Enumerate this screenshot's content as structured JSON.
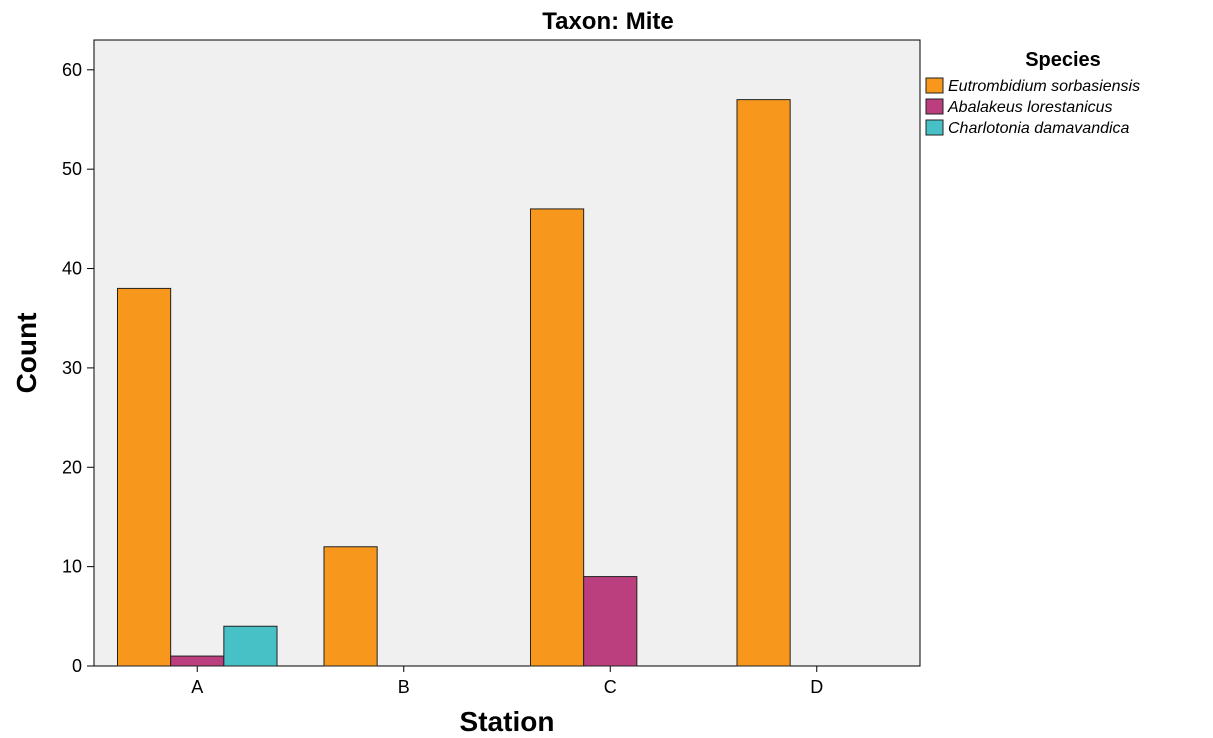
{
  "chart_data": {
    "type": "bar",
    "title": "Taxon: Mite",
    "xlabel": "Station",
    "ylabel": "Count",
    "categories": [
      "A",
      "B",
      "C",
      "D"
    ],
    "ylim": [
      0,
      63
    ],
    "yticks": [
      0,
      10,
      20,
      30,
      40,
      50,
      60
    ],
    "grid": false,
    "background": "#f0f0f0",
    "legend": {
      "title": "Species",
      "placement": "right"
    },
    "series": [
      {
        "name": "Eutrombidium sorbasiensis",
        "color": "#f7981d",
        "values": [
          38,
          12,
          46,
          57
        ]
      },
      {
        "name": "Abalakeus lorestanicus",
        "color": "#bb3f7e",
        "values": [
          1,
          0,
          9,
          0
        ]
      },
      {
        "name": "Charlotonia damavandica",
        "color": "#48c1c6",
        "values": [
          4,
          0,
          0,
          0
        ]
      }
    ]
  }
}
